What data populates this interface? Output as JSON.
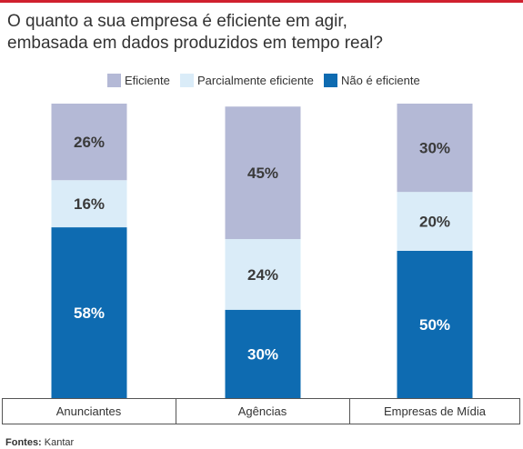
{
  "title_line1": "O quanto a sua empresa é eficiente em agir,",
  "title_line2": "embasada em dados produzidos em tempo real?",
  "source_label": "Fontes:",
  "source_value": "Kantar",
  "colors": {
    "accent_rule": "#d0202e",
    "eficiente": "#b4b9d6",
    "parcial": "#daecf8",
    "nao": "#0e6bb1"
  },
  "chart_data": {
    "type": "bar",
    "stacked": true,
    "categories": [
      "Anunciantes",
      "Agências",
      "Empresas de Mídia"
    ],
    "series": [
      {
        "name": "Não é eficiente",
        "values": [
          58,
          30,
          50
        ],
        "color": "#0e6bb1",
        "label_color": "#ffffff"
      },
      {
        "name": "Parcialmente eficiente",
        "values": [
          16,
          24,
          20
        ],
        "color": "#daecf8",
        "label_color": "#3a3a3a"
      },
      {
        "name": "Eficiente",
        "values": [
          26,
          45,
          30
        ],
        "color": "#b4b9d6",
        "label_color": "#3a3a3a"
      }
    ],
    "legend_order": [
      "Eficiente",
      "Parcialmente eficiente",
      "Não é eficiente"
    ],
    "value_suffix": "%",
    "ylim": [
      0,
      100
    ],
    "legend_position": "top",
    "grid": false
  }
}
